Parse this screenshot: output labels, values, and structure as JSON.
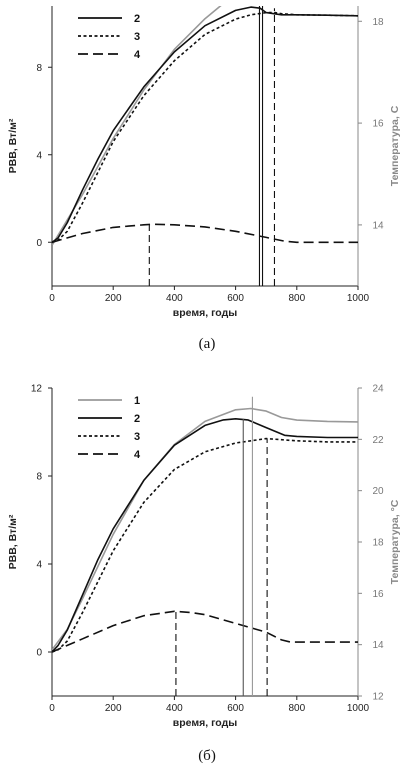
{
  "chart_data": [
    {
      "type": "line",
      "caption": "(а)",
      "xlabel": "время, годы",
      "ylabel": "РВВ, Вт/м²",
      "y2label": "Температура, С",
      "xlim": [
        0,
        1000
      ],
      "ylim": [
        -2,
        10.8
      ],
      "y2lim": [
        12.8,
        18.3
      ],
      "xticks": [
        0,
        200,
        400,
        600,
        800,
        1000
      ],
      "yticks": [
        0,
        4,
        8
      ],
      "y2ticks": [
        14,
        16,
        18
      ],
      "legend": "top-left",
      "series": [
        {
          "name": "",
          "color": "#999999",
          "dash": "",
          "axis": "right",
          "x": [
            0,
            100,
            200,
            300,
            400,
            500,
            560,
            600
          ],
          "y": [
            13.6,
            14.6,
            15.7,
            16.65,
            17.45,
            18.05,
            18.35,
            18.5
          ]
        },
        {
          "name": "2",
          "color": "#111111",
          "dash": "",
          "axis": "left",
          "x": [
            0,
            20,
            50,
            100,
            150,
            200,
            300,
            400,
            500,
            600,
            650,
            680,
            700,
            750,
            800,
            900,
            1000
          ],
          "y": [
            0,
            0.2,
            0.9,
            2.4,
            3.8,
            5.1,
            7.1,
            8.7,
            9.9,
            10.6,
            10.75,
            10.7,
            10.5,
            10.4,
            10.4,
            10.38,
            10.35
          ]
        },
        {
          "name": "3",
          "color": "#111111",
          "dash": "3,2.5",
          "axis": "left",
          "x": [
            0,
            20,
            50,
            100,
            150,
            200,
            300,
            400,
            500,
            600,
            650,
            700,
            730,
            750,
            800,
            900,
            1000
          ],
          "y": [
            0,
            0.1,
            0.5,
            1.8,
            3.2,
            4.6,
            6.7,
            8.3,
            9.5,
            10.2,
            10.4,
            10.5,
            10.5,
            10.45,
            10.4,
            10.38,
            10.35
          ]
        },
        {
          "name": "4",
          "color": "#111111",
          "dash": "10,5",
          "axis": "left",
          "x": [
            0,
            50,
            100,
            200,
            300,
            330,
            400,
            500,
            600,
            700,
            760,
            800,
            900,
            1000
          ],
          "y": [
            0,
            0.2,
            0.4,
            0.68,
            0.8,
            0.82,
            0.8,
            0.7,
            0.5,
            0.22,
            0.05,
            0,
            0,
            0
          ]
        }
      ],
      "vlines": [
        {
          "x": 678,
          "style": "solid",
          "color": "#111111",
          "from": "bottom",
          "to": "top"
        },
        {
          "x": 688,
          "style": "solid",
          "color": "#111111",
          "from": "bottom",
          "to": "top"
        },
        {
          "x": 727,
          "style": "dash",
          "color": "#111111",
          "from": "bottom",
          "to": 10.7
        },
        {
          "x": 318,
          "style": "dash",
          "color": "#111111",
          "from": "bottom",
          "to": 0.8
        }
      ]
    },
    {
      "type": "line",
      "caption": "(б)",
      "xlabel": "время, годы",
      "ylabel": "РВВ, Вт/м²",
      "y2label": "Температура, °С",
      "xlim": [
        0,
        1000
      ],
      "ylim": [
        -2,
        12
      ],
      "y2lim": [
        12,
        24
      ],
      "xticks": [
        0,
        200,
        400,
        600,
        800,
        1000
      ],
      "yticks": [
        0,
        4,
        8,
        12
      ],
      "y2ticks": [
        12,
        14,
        16,
        18,
        20,
        22,
        24
      ],
      "legend": "top-left",
      "series": [
        {
          "name": "1",
          "color": "#999999",
          "dash": "",
          "axis": "right",
          "x": [
            0,
            50,
            100,
            200,
            300,
            400,
            500,
            600,
            650,
            700,
            750,
            800,
            900,
            1000
          ],
          "y": [
            13.8,
            14.6,
            15.8,
            18.3,
            20.4,
            21.8,
            22.7,
            23.15,
            23.2,
            23.1,
            22.85,
            22.75,
            22.7,
            22.68
          ]
        },
        {
          "name": "2",
          "color": "#111111",
          "dash": "",
          "axis": "left",
          "x": [
            0,
            20,
            50,
            100,
            150,
            200,
            300,
            400,
            500,
            560,
            600,
            640,
            700,
            760,
            800,
            900,
            1000
          ],
          "y": [
            0,
            0.3,
            1.0,
            2.6,
            4.2,
            5.6,
            7.8,
            9.4,
            10.3,
            10.55,
            10.6,
            10.55,
            10.2,
            9.85,
            9.8,
            9.75,
            9.75
          ]
        },
        {
          "name": "3",
          "color": "#111111",
          "dash": "3,2.5",
          "axis": "left",
          "x": [
            0,
            20,
            50,
            100,
            150,
            200,
            300,
            400,
            500,
            600,
            650,
            700,
            750,
            800,
            900,
            1000
          ],
          "y": [
            0,
            0.1,
            0.5,
            1.8,
            3.2,
            4.6,
            6.8,
            8.3,
            9.1,
            9.5,
            9.6,
            9.7,
            9.65,
            9.6,
            9.55,
            9.55
          ]
        },
        {
          "name": "4",
          "color": "#111111",
          "dash": "10,5",
          "axis": "left",
          "x": [
            0,
            50,
            100,
            200,
            300,
            400,
            450,
            500,
            600,
            700,
            750,
            780,
            800,
            900,
            1000
          ],
          "y": [
            0,
            0.3,
            0.6,
            1.2,
            1.65,
            1.85,
            1.8,
            1.7,
            1.3,
            0.9,
            0.55,
            0.45,
            0.45,
            0.45,
            0.45
          ]
        }
      ],
      "vlines": [
        {
          "x": 625,
          "style": "solid",
          "color": "#555555",
          "from": "bottom",
          "to": 10.6
        },
        {
          "x": 655,
          "style": "solid",
          "color": "#999999",
          "from": "bottom",
          "to": 11.6
        },
        {
          "x": 703,
          "style": "dash",
          "color": "#111111",
          "from": "bottom",
          "to": 9.7
        },
        {
          "x": 405,
          "style": "dash",
          "color": "#111111",
          "from": "bottom",
          "to": 1.85
        }
      ]
    }
  ]
}
